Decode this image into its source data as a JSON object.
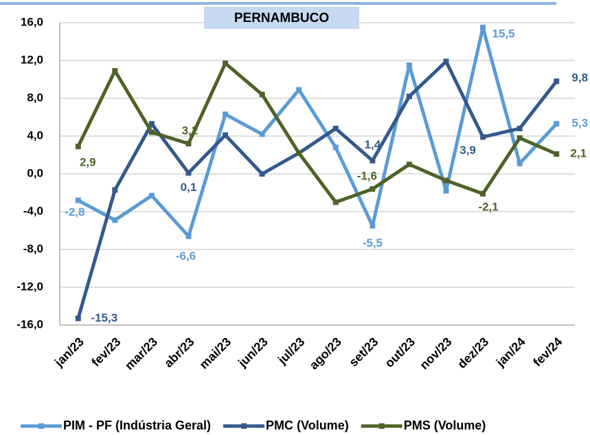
{
  "chart_data": {
    "type": "line",
    "title": "PERNAMBUCO",
    "categories": [
      "jan/23",
      "fev/23",
      "mar/23",
      "abr/23",
      "mai/23",
      "jun/23",
      "jul/23",
      "ago/23",
      "set/23",
      "out/23",
      "nov/23",
      "dez/23",
      "jan/24",
      "fev/24"
    ],
    "series": [
      {
        "name": "PIM - PF (Indústria Geral)",
        "color": "#5b9bd5",
        "values": [
          -2.8,
          -4.9,
          -2.3,
          -6.6,
          6.3,
          4.2,
          8.9,
          2.8,
          -5.5,
          11.5,
          -1.8,
          15.5,
          1.1,
          5.3
        ],
        "value_labels": [
          "-2,8",
          null,
          null,
          "-6,6",
          null,
          null,
          null,
          null,
          "-5,5",
          null,
          null,
          "15,5",
          null,
          "5,3"
        ]
      },
      {
        "name": "PMC (Volume)",
        "color": "#34598c",
        "values": [
          -15.3,
          -1.7,
          5.3,
          0.1,
          4.1,
          0.0,
          2.2,
          4.8,
          1.4,
          8.2,
          11.9,
          3.9,
          4.8,
          9.8
        ],
        "value_labels": [
          "-15,3",
          null,
          null,
          "0,1",
          null,
          null,
          null,
          null,
          "1,4",
          null,
          null,
          "3,9",
          null,
          "9,8"
        ]
      },
      {
        "name": "PMS (Volume)",
        "color": "#4f6228",
        "values": [
          2.9,
          10.9,
          4.4,
          3.2,
          11.7,
          8.4,
          2.2,
          -3.0,
          -1.6,
          1.0,
          -0.7,
          -2.1,
          3.8,
          2.1
        ],
        "value_labels": [
          "2,9",
          null,
          null,
          "3,2",
          null,
          null,
          null,
          null,
          "-1,6",
          null,
          null,
          "-2,1",
          null,
          "2,1"
        ]
      }
    ],
    "ylim": [
      -16,
      16
    ],
    "yticks": [
      {
        "value": -16,
        "label": "-16,0"
      },
      {
        "value": -12,
        "label": "-12,0"
      },
      {
        "value": -8,
        "label": "-8,0"
      },
      {
        "value": -4,
        "label": "-4,0"
      },
      {
        "value": 0,
        "label": "0,0"
      },
      {
        "value": 4,
        "label": "4,0"
      },
      {
        "value": 8,
        "label": "8,0"
      },
      {
        "value": 12,
        "label": "12,0"
      },
      {
        "value": 16,
        "label": "16,0"
      }
    ],
    "grid": true,
    "legend": "bottom"
  }
}
